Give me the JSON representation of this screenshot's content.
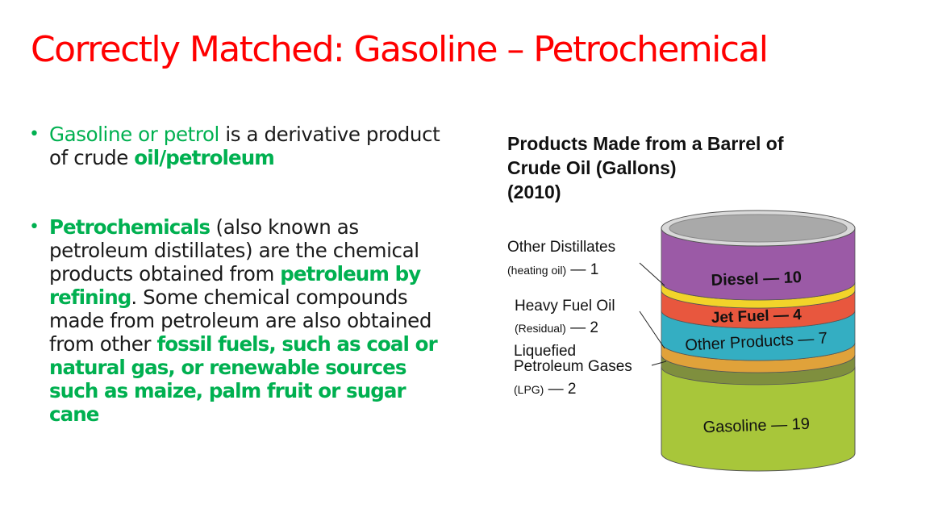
{
  "slide": {
    "title": "Correctly Matched:  Gasoline – Petrochemical",
    "bullet1": {
      "part1": "Gasoline or petrol",
      "part2": " is a derivative product of crude ",
      "part3": "oil/petroleum"
    },
    "bullet2": {
      "part1": "Petrochemicals",
      "part2": " (also known as petroleum distillates) are the chemical products obtained from ",
      "part3": "petroleum by refining",
      "part4": ". Some chemical compounds made from petroleum are also obtained from other ",
      "part5": "fossil fuels, such as coal or natural gas, or renewable sources such as maize, palm fruit or sugar cane"
    },
    "bullet_glyph": "•"
  },
  "diagram": {
    "title_lines": [
      "Products Made from a Barrel of",
      "Crude Oil (Gallons)",
      "(2010)"
    ],
    "layers": {
      "diesel": "Diesel — 10",
      "jet_fuel": "Jet Fuel — 4",
      "other_products": "Other Products — 7",
      "gasoline": "Gasoline — 19"
    },
    "callouts": {
      "other_distillates": "Other Distillates",
      "other_distillates_sub": "(heating oil)",
      "other_distillates_value": " — 1",
      "heavy_fuel_oil": "Heavy Fuel Oil",
      "heavy_fuel_oil_sub": "(Residual)",
      "heavy_fuel_oil_value": " — 2",
      "lpg_line1": "Liquefied",
      "lpg_line2": "Petroleum Gases",
      "lpg_sub": "(LPG)",
      "lpg_value": " — 2"
    },
    "colors": {
      "diesel": "#9b5aa6",
      "heating_oil": "#f2d32a",
      "jet_fuel": "#e8573e",
      "other_products": "#34aec2",
      "heavy_fuel_oil": "#e0a23a",
      "lpg": "#7f8f3e",
      "gasoline": "#a8c63a",
      "lid": "#a9a9a9"
    }
  }
}
